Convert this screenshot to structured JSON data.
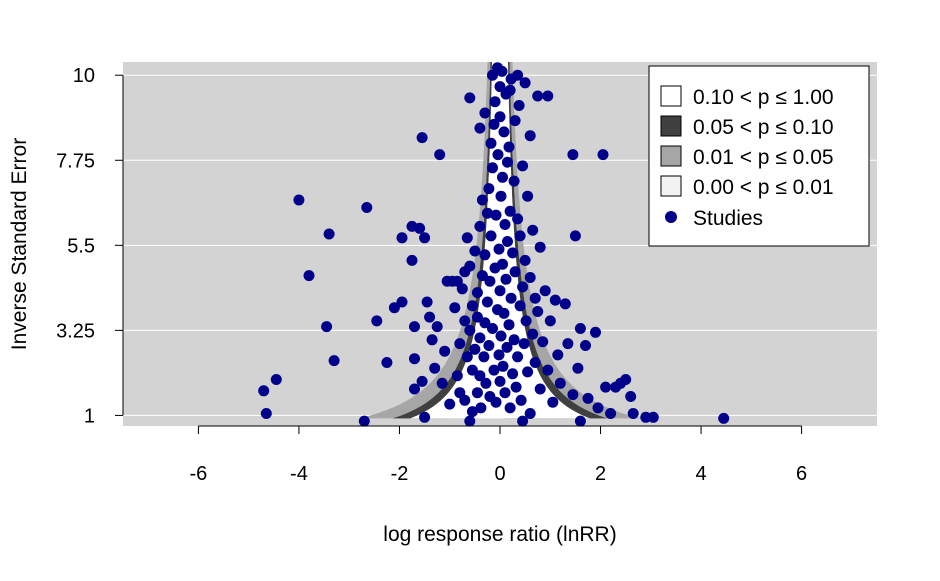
{
  "chart_data": {
    "type": "scatter",
    "title": "",
    "xlabel": "log response ratio (lnRR)",
    "ylabel": "Inverse Standard Error",
    "xlim": [
      -7.5,
      7.5
    ],
    "ylim": [
      0.72,
      10.35
    ],
    "xticks": [
      "-6",
      "-4",
      "-2",
      "0",
      "2",
      "4",
      "6"
    ],
    "yticks": [
      "1",
      "3.25",
      "5.5",
      "7.75",
      "10"
    ],
    "grid": "horizontal",
    "background": "#d3d3d3",
    "point_color": "#00008b",
    "legend_position": "top-right",
    "legend": [
      {
        "label": "0.10 < p ≤ 1.00",
        "fill": "#ffffff"
      },
      {
        "label": "0.05 < p ≤ 0.10",
        "fill": "#404040"
      },
      {
        "label": "0.01 < p ≤ 0.05",
        "fill": "#a6a6a6"
      },
      {
        "label": "0.00 < p ≤ 0.01",
        "fill": "#f2f2f2"
      },
      {
        "label": "Studies",
        "marker": "circle",
        "fill": "#00008b"
      }
    ],
    "contours": [
      {
        "p_range": "0.10 < p ≤ 1.00",
        "z": 1.645,
        "fill": "#ffffff"
      },
      {
        "p_range": "0.05 < p ≤ 0.10",
        "z": 1.96,
        "fill": "#404040"
      },
      {
        "p_range": "0.01 < p ≤ 0.05",
        "z": 2.576,
        "fill": "#a6a6a6"
      }
    ],
    "series": [
      {
        "name": "Studies",
        "points": [
          [
            -4.0,
            6.7
          ],
          [
            -3.8,
            4.7
          ],
          [
            -3.4,
            5.8
          ],
          [
            -3.45,
            3.35
          ],
          [
            -3.3,
            2.45
          ],
          [
            -4.45,
            1.95
          ],
          [
            -4.7,
            1.65
          ],
          [
            -4.65,
            1.05
          ],
          [
            -2.65,
            6.5
          ],
          [
            -2.45,
            3.5
          ],
          [
            -2.25,
            2.4
          ],
          [
            -2.1,
            3.85
          ],
          [
            -1.95,
            4.0
          ],
          [
            -1.95,
            5.7
          ],
          [
            -1.75,
            6.0
          ],
          [
            -1.7,
            3.35
          ],
          [
            -1.7,
            2.5
          ],
          [
            -1.7,
            1.7
          ],
          [
            -1.75,
            5.1
          ],
          [
            -1.6,
            5.95
          ],
          [
            -1.5,
            5.7
          ],
          [
            -1.55,
            1.9
          ],
          [
            -1.5,
            0.95
          ],
          [
            -1.55,
            8.35
          ],
          [
            -1.45,
            4.0
          ],
          [
            -1.4,
            3.6
          ],
          [
            -1.35,
            3.0
          ],
          [
            -1.3,
            2.25
          ],
          [
            -1.25,
            3.35
          ],
          [
            -1.2,
            7.9
          ],
          [
            -1.15,
            1.85
          ],
          [
            -1.1,
            2.7
          ],
          [
            -1.05,
            4.55
          ],
          [
            -1.0,
            1.3
          ],
          [
            -0.95,
            4.55
          ],
          [
            -0.9,
            3.85
          ],
          [
            -0.85,
            2.05
          ],
          [
            -0.85,
            4.55
          ],
          [
            -0.8,
            2.9
          ],
          [
            -0.8,
            1.6
          ],
          [
            -0.75,
            4.35
          ],
          [
            -0.7,
            3.5
          ],
          [
            -0.7,
            4.8
          ],
          [
            -0.7,
            1.4
          ],
          [
            -0.65,
            2.55
          ],
          [
            -0.65,
            5.7
          ],
          [
            -0.6,
            3.25
          ],
          [
            -0.6,
            4.95
          ],
          [
            -0.55,
            2.2
          ],
          [
            -0.55,
            1.1
          ],
          [
            -0.55,
            3.9
          ],
          [
            -0.5,
            2.75
          ],
          [
            -0.5,
            5.35
          ],
          [
            -0.45,
            3.6
          ],
          [
            -0.45,
            1.6
          ],
          [
            -0.45,
            4.25
          ],
          [
            -0.4,
            2.05
          ],
          [
            -0.4,
            6.0
          ],
          [
            -0.4,
            3.05
          ],
          [
            -0.38,
            1.2
          ],
          [
            -0.35,
            4.7
          ],
          [
            -0.35,
            6.7
          ],
          [
            -0.32,
            2.55
          ],
          [
            -0.3,
            3.45
          ],
          [
            -0.3,
            5.25
          ],
          [
            -0.28,
            1.85
          ],
          [
            -0.25,
            4.0
          ],
          [
            -0.25,
            6.35
          ],
          [
            -0.22,
            2.85
          ],
          [
            -0.22,
            7.0
          ],
          [
            -0.2,
            4.55
          ],
          [
            -0.2,
            1.5
          ],
          [
            -0.18,
            5.75
          ],
          [
            -0.18,
            8.2
          ],
          [
            -0.15,
            3.3
          ],
          [
            -0.15,
            7.55
          ],
          [
            -0.12,
            2.2
          ],
          [
            -0.12,
            8.7
          ],
          [
            -0.1,
            4.9
          ],
          [
            -0.1,
            9.3
          ],
          [
            -0.08,
            6.3
          ],
          [
            -0.08,
            1.35
          ],
          [
            -0.05,
            3.8
          ],
          [
            -0.05,
            10.2
          ],
          [
            -0.04,
            7.9
          ],
          [
            -0.02,
            2.6
          ],
          [
            -0.02,
            5.4
          ],
          [
            0.0,
            8.9
          ],
          [
            0.0,
            9.7
          ],
          [
            0.0,
            4.3
          ],
          [
            0.0,
            1.9
          ],
          [
            0.02,
            6.8
          ],
          [
            0.02,
            3.1
          ],
          [
            0.04,
            10.1
          ],
          [
            0.05,
            7.3
          ],
          [
            0.05,
            5.0
          ],
          [
            0.06,
            2.3
          ],
          [
            0.08,
            8.5
          ],
          [
            0.08,
            3.7
          ],
          [
            0.1,
            6.05
          ],
          [
            0.1,
            1.6
          ],
          [
            0.12,
            9.5
          ],
          [
            0.12,
            4.6
          ],
          [
            0.14,
            2.8
          ],
          [
            0.15,
            7.7
          ],
          [
            0.15,
            5.6
          ],
          [
            0.18,
            3.4
          ],
          [
            0.18,
            8.1
          ],
          [
            0.2,
            1.2
          ],
          [
            0.2,
            6.4
          ],
          [
            0.22,
            4.1
          ],
          [
            0.22,
            9.9
          ],
          [
            0.25,
            2.1
          ],
          [
            0.25,
            5.3
          ],
          [
            0.28,
            7.2
          ],
          [
            0.28,
            3.0
          ],
          [
            0.3,
            8.8
          ],
          [
            0.3,
            4.8
          ],
          [
            0.32,
            1.75
          ],
          [
            0.35,
            6.2
          ],
          [
            0.35,
            2.55
          ],
          [
            0.38,
            9.2
          ],
          [
            0.4,
            3.9
          ],
          [
            0.4,
            5.75
          ],
          [
            0.42,
            1.4
          ],
          [
            0.45,
            4.4
          ],
          [
            0.45,
            7.6
          ],
          [
            0.48,
            2.9
          ],
          [
            0.5,
            5.1
          ],
          [
            0.5,
            9.8
          ],
          [
            0.52,
            3.5
          ],
          [
            0.55,
            2.15
          ],
          [
            0.55,
            6.8
          ],
          [
            0.6,
            4.65
          ],
          [
            0.6,
            1.05
          ],
          [
            0.65,
            3.15
          ],
          [
            0.65,
            5.9
          ],
          [
            0.7,
            2.4
          ],
          [
            0.7,
            4.1
          ],
          [
            0.75,
            3.75
          ],
          [
            0.8,
            1.7
          ],
          [
            0.8,
            5.45
          ],
          [
            0.85,
            2.95
          ],
          [
            0.9,
            4.3
          ],
          [
            0.95,
            2.2
          ],
          [
            1.0,
            3.5
          ],
          [
            1.05,
            1.35
          ],
          [
            1.1,
            4.05
          ],
          [
            1.15,
            2.6
          ],
          [
            1.2,
            1.85
          ],
          [
            1.3,
            3.95
          ],
          [
            1.35,
            2.9
          ],
          [
            1.45,
            7.9
          ],
          [
            1.45,
            1.55
          ],
          [
            1.5,
            5.75
          ],
          [
            1.55,
            2.25
          ],
          [
            1.6,
            3.3
          ],
          [
            1.7,
            2.85
          ],
          [
            1.75,
            1.45
          ],
          [
            1.9,
            3.2
          ],
          [
            1.95,
            1.2
          ],
          [
            2.05,
            7.9
          ],
          [
            2.1,
            1.75
          ],
          [
            2.2,
            1.05
          ],
          [
            2.3,
            1.75
          ],
          [
            2.4,
            1.85
          ],
          [
            2.5,
            1.95
          ],
          [
            2.6,
            1.5
          ],
          [
            2.65,
            1.05
          ],
          [
            2.9,
            0.95
          ],
          [
            3.05,
            0.95
          ],
          [
            4.45,
            0.92
          ],
          [
            -0.6,
            0.85
          ],
          [
            0.45,
            0.85
          ],
          [
            1.6,
            0.85
          ],
          [
            -2.7,
            0.85
          ],
          [
            0.35,
            10.0
          ],
          [
            -0.15,
            10.0
          ],
          [
            0.2,
            9.6
          ],
          [
            -0.3,
            9.0
          ],
          [
            0.75,
            9.45
          ],
          [
            0.95,
            9.45
          ],
          [
            -0.6,
            9.4
          ],
          [
            0.6,
            8.4
          ],
          [
            -0.4,
            8.6
          ]
        ]
      }
    ]
  }
}
